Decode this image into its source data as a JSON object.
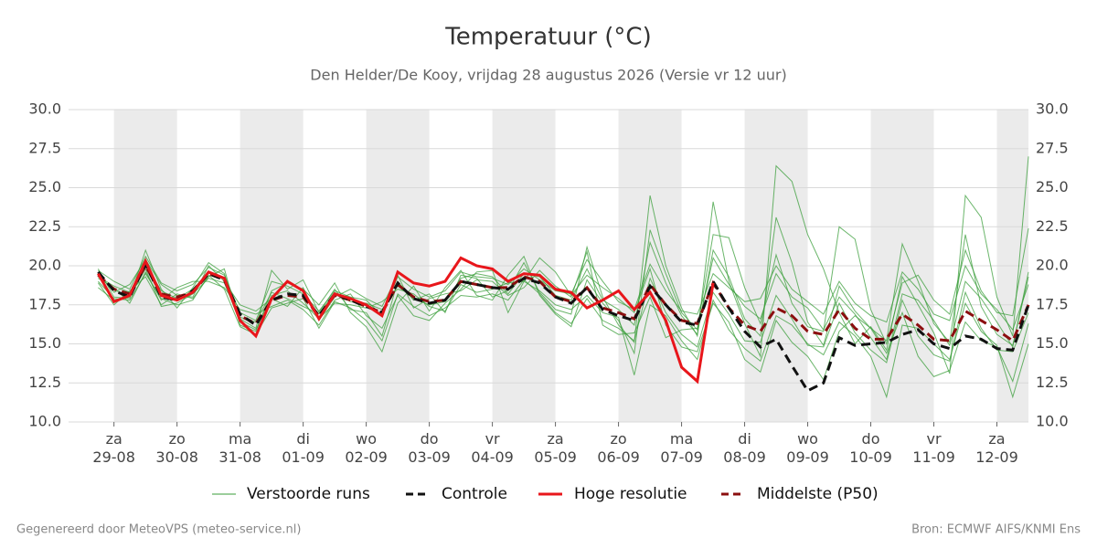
{
  "chart_data": {
    "type": "line",
    "title": "Temperatuur (°C)",
    "subtitle": "Den Helder/De Kooy, vrijdag 28 augustus 2026 (Versie vr 12 uur)",
    "footer_left": "Gegenereerd door MeteoVPS (meteo-service.nl)",
    "footer_right": "Bron: ECMWF AIFS/KNMI Ens",
    "xlim": [
      -0.72,
      14.5
    ],
    "xticks": [
      {
        "value": 0,
        "label": "za\n29-08"
      },
      {
        "value": 1,
        "label": "zo\n30-08"
      },
      {
        "value": 2,
        "label": "ma\n31-08"
      },
      {
        "value": 3,
        "label": "di\n01-09"
      },
      {
        "value": 4,
        "label": "wo\n02-09"
      },
      {
        "value": 5,
        "label": "do\n03-09"
      },
      {
        "value": 6,
        "label": "vr\n04-09"
      },
      {
        "value": 7,
        "label": "za\n05-09"
      },
      {
        "value": 8,
        "label": "zo\n06-09"
      },
      {
        "value": 9,
        "label": "ma\n07-09"
      },
      {
        "value": 10,
        "label": "di\n08-09"
      },
      {
        "value": 11,
        "label": "wo\n09-09"
      },
      {
        "value": 12,
        "label": "do\n10-09"
      },
      {
        "value": 13,
        "label": "vr\n11-09"
      },
      {
        "value": 14,
        "label": "za\n12-09"
      }
    ],
    "ylim": [
      10,
      30
    ],
    "yticks": [
      {
        "value": 10,
        "label": "10.0"
      },
      12.5,
      {
        "value": 15,
        "label": "15.0"
      },
      17.5,
      {
        "value": 20,
        "label": "20.0"
      },
      22.5,
      {
        "value": 25,
        "label": "25.0"
      },
      27.5,
      {
        "value": 30,
        "label": "30.0"
      }
    ],
    "grid": true,
    "shade_alternate_days": true,
    "x": [
      -0.25,
      0,
      0.25,
      0.5,
      0.75,
      1,
      1.25,
      1.5,
      1.75,
      2,
      2.25,
      2.5,
      2.75,
      3,
      3.25,
      3.5,
      3.75,
      4,
      4.25,
      4.5,
      4.75,
      5,
      5.25,
      5.5,
      5.75,
      6,
      6.25,
      6.5,
      6.75,
      7,
      7.25,
      7.5,
      7.75,
      8,
      8.25,
      8.5,
      8.75,
      9,
      9.25,
      9.5,
      9.75,
      10,
      10.25,
      10.5,
      10.75,
      11,
      11.25,
      11.5,
      11.75,
      12,
      12.25,
      12.5,
      12.75,
      13,
      13.25,
      13.5,
      13.75,
      14,
      14.25,
      14.5
    ],
    "members": {
      "name": "Verstoorde runs",
      "color": "#3a9d3a",
      "runs": [
        [
          19.8,
          18.0,
          17.9,
          21.0,
          18.5,
          17.3,
          18.6,
          20.2,
          19.5,
          16.6,
          16.0,
          19.7,
          18.5,
          19.1,
          17.0,
          18.5,
          17.2,
          17.0,
          15.5,
          19.0,
          17.8,
          18.2,
          17.0,
          19.4,
          19.2,
          18.0,
          18.4,
          20.2,
          18.3,
          17.2,
          16.9,
          21.2,
          18.0,
          16.2,
          15.1,
          24.5,
          20.0,
          17.3,
          15.5,
          24.1,
          19.0,
          16.3,
          14.2,
          26.4,
          25.4,
          22.0,
          19.8,
          17.0,
          15.0,
          16.1,
          14.6,
          19.3,
          17.5,
          15.7,
          13.1,
          24.5,
          23.1,
          18.0,
          15.5,
          27.0
        ],
        [
          19.2,
          18.6,
          17.6,
          19.6,
          17.8,
          18.6,
          19.0,
          19.0,
          18.6,
          17.2,
          16.9,
          17.4,
          17.8,
          17.2,
          16.2,
          17.8,
          18.2,
          16.8,
          16.0,
          18.1,
          16.8,
          16.5,
          17.6,
          18.5,
          19.6,
          19.7,
          17.0,
          19.0,
          20.5,
          19.6,
          18.1,
          19.4,
          18.6,
          17.9,
          17.0,
          19.8,
          16.2,
          14.8,
          14.5,
          17.6,
          16.4,
          14.0,
          13.2,
          16.5,
          15.1,
          14.2,
          12.7,
          15.8,
          16.8,
          16.0,
          14.4,
          17.0,
          14.2,
          12.9,
          13.3,
          16.4,
          15.2,
          14.8,
          12.6,
          16.3
        ],
        [
          18.9,
          17.5,
          18.4,
          19.3,
          17.5,
          18.2,
          17.9,
          19.3,
          19.8,
          16.2,
          15.8,
          18.4,
          18.9,
          18.5,
          17.5,
          18.9,
          17.0,
          16.1,
          14.5,
          17.6,
          18.7,
          17.1,
          18.6,
          19.7,
          18.1,
          17.8,
          19.4,
          20.6,
          18.1,
          16.9,
          16.1,
          19.1,
          17.6,
          16.5,
          14.4,
          22.3,
          19.5,
          17.0,
          15.9,
          20.5,
          18.8,
          17.4,
          16.6,
          19.5,
          18.0,
          17.3,
          15.9,
          18.0,
          16.9,
          15.4,
          14.0,
          18.2,
          17.8,
          16.5,
          14.9,
          19.0,
          17.9,
          16.4,
          14.8,
          19.6
        ],
        [
          19.5,
          18.3,
          18.8,
          20.4,
          18.8,
          18.1,
          18.0,
          20.0,
          19.0,
          17.5,
          17.1,
          17.9,
          17.4,
          18.6,
          16.5,
          18.0,
          18.5,
          17.9,
          17.4,
          19.4,
          17.3,
          17.9,
          18.2,
          18.4,
          19.1,
          19.0,
          18.1,
          18.6,
          19.7,
          18.7,
          18.0,
          20.9,
          16.2,
          15.6,
          15.7,
          18.0,
          15.4,
          15.9,
          16.0,
          22.0,
          21.8,
          18.6,
          16.3,
          20.7,
          17.6,
          16.1,
          15.8,
          22.5,
          21.7,
          17.2,
          15.0,
          18.9,
          19.4,
          17.8,
          16.9,
          21.0,
          18.4,
          17.0,
          16.8,
          22.4
        ],
        [
          18.6,
          17.8,
          18.0,
          19.8,
          17.4,
          17.6,
          18.2,
          19.2,
          18.9,
          16.4,
          15.9,
          18.1,
          18.4,
          17.6,
          16.6,
          17.6,
          17.5,
          17.3,
          17.7,
          18.5,
          18.2,
          17.4,
          17.1,
          18.8,
          18.3,
          18.5,
          18.9,
          19.0,
          18.4,
          17.5,
          17.2,
          18.1,
          17.0,
          16.7,
          13.0,
          17.5,
          16.8,
          15.2,
          14.0,
          17.8,
          15.9,
          14.7,
          13.9,
          16.8,
          16.2,
          15.0,
          14.3,
          16.4,
          15.5,
          14.2,
          11.6,
          16.2,
          16.0,
          15.0,
          14.0,
          17.6,
          15.8,
          14.9,
          11.6,
          15.0
        ],
        [
          19.7,
          19.0,
          18.5,
          20.6,
          18.9,
          18.4,
          18.8,
          19.9,
          19.4,
          17.0,
          16.5,
          19.0,
          18.7,
          18.2,
          17.1,
          18.4,
          18.0,
          17.8,
          16.8,
          19.3,
          18.5,
          18.0,
          18.4,
          19.6,
          19.3,
          19.2,
          18.8,
          19.8,
          19.1,
          18.4,
          18.2,
          20.4,
          19.0,
          17.7,
          17.2,
          20.1,
          18.4,
          17.1,
          16.9,
          19.5,
          18.6,
          17.7,
          17.9,
          20.0,
          18.5,
          17.7,
          16.9,
          19.0,
          17.6,
          16.8,
          16.4,
          19.6,
          18.5,
          16.9,
          16.5,
          20.0,
          18.2,
          17.2,
          15.9,
          18.8
        ],
        [
          19.0,
          17.9,
          17.8,
          19.5,
          17.9,
          17.5,
          17.8,
          19.4,
          18.5,
          16.1,
          15.6,
          17.3,
          17.6,
          17.9,
          16.0,
          17.7,
          17.3,
          16.5,
          15.2,
          18.2,
          17.4,
          16.8,
          17.3,
          18.1,
          18.0,
          18.2,
          17.8,
          19.1,
          18.2,
          17.0,
          16.3,
          17.9,
          16.5,
          16.0,
          15.2,
          19.2,
          17.0,
          15.6,
          14.8,
          18.3,
          16.9,
          15.2,
          15.1,
          18.1,
          16.6,
          14.9,
          14.8,
          17.6,
          15.7,
          14.6,
          13.8,
          17.8,
          15.5,
          14.3,
          13.9,
          18.3,
          16.0,
          14.6,
          14.5,
          17.0
        ],
        [
          19.3,
          18.7,
          18.3,
          20.1,
          18.4,
          17.9,
          18.5,
          19.6,
          19.2,
          16.7,
          16.4,
          18.3,
          17.9,
          17.4,
          16.9,
          18.3,
          17.7,
          17.6,
          17.2,
          18.7,
          17.9,
          17.5,
          17.7,
          19.2,
          19.5,
          19.3,
          18.2,
          19.5,
          19.3,
          18.1,
          17.8,
          19.8,
          17.8,
          17.2,
          16.2,
          21.5,
          18.9,
          16.8,
          15.6,
          21.0,
          19.3,
          16.6,
          15.5,
          23.1,
          20.2,
          16.4,
          14.9,
          18.7,
          17.1,
          16.0,
          15.2,
          21.4,
          19.0,
          16.3,
          15.1,
          22.0,
          17.4,
          15.6,
          14.9,
          19.3
        ]
      ]
    },
    "series": [
      {
        "name": "Controle",
        "color": "#111111",
        "dash": true,
        "values": [
          19.6,
          18.4,
          18.0,
          20.1,
          18.0,
          17.8,
          18.4,
          19.5,
          19.1,
          16.9,
          16.2,
          17.8,
          18.2,
          18.1,
          16.8,
          18.2,
          17.8,
          17.4,
          17.0,
          18.9,
          17.9,
          17.6,
          17.8,
          19.0,
          18.8,
          18.6,
          18.5,
          19.2,
          18.9,
          18.0,
          17.6,
          18.6,
          17.2,
          16.8,
          16.5,
          18.7,
          17.5,
          16.4,
          16.2,
          19.0,
          17.3,
          15.8,
          14.8,
          15.3,
          13.6,
          12.0,
          12.5,
          15.4,
          14.9,
          15.0,
          15.1,
          15.6,
          15.9,
          15.0,
          14.7,
          15.5,
          15.3,
          14.7,
          14.6,
          17.5
        ]
      },
      {
        "name": "Hoge resolutie",
        "color": "#e8161b",
        "dash": false,
        "values": [
          19.5,
          17.7,
          18.1,
          20.3,
          18.1,
          17.8,
          18.3,
          19.6,
          19.2,
          16.5,
          15.5,
          17.9,
          19.0,
          18.4,
          16.6,
          18.2,
          17.9,
          17.5,
          16.8,
          19.6,
          18.9,
          18.7,
          19.0,
          20.5,
          20.0,
          19.8,
          19.0,
          19.5,
          19.4,
          18.5,
          18.3,
          17.3,
          17.8,
          18.4,
          17.2,
          18.3,
          16.5,
          13.5,
          12.6,
          18.9,
          null,
          null,
          null,
          null,
          null,
          null,
          null,
          null,
          null,
          null,
          null,
          null,
          null,
          null,
          null,
          null,
          null,
          null,
          null,
          null
        ]
      },
      {
        "name": "Middelste (P50)",
        "color": "#8b0f0f",
        "dash": true,
        "values": [
          19.4,
          18.5,
          18.2,
          20.0,
          18.2,
          18.0,
          18.3,
          19.5,
          19.1,
          16.8,
          16.3,
          17.8,
          18.1,
          18.0,
          16.8,
          18.1,
          17.8,
          17.4,
          17.0,
          18.8,
          18.0,
          17.7,
          17.8,
          19.0,
          18.8,
          18.6,
          18.6,
          19.3,
          19.0,
          18.0,
          17.7,
          18.6,
          17.3,
          17.0,
          16.6,
          18.8,
          17.5,
          16.5,
          16.3,
          18.9,
          17.3,
          16.2,
          15.8,
          17.3,
          16.8,
          15.8,
          15.6,
          17.2,
          16.0,
          15.3,
          15.3,
          16.9,
          16.2,
          15.3,
          15.2,
          17.1,
          16.5,
          15.9,
          15.2,
          17.5
        ]
      }
    ]
  }
}
